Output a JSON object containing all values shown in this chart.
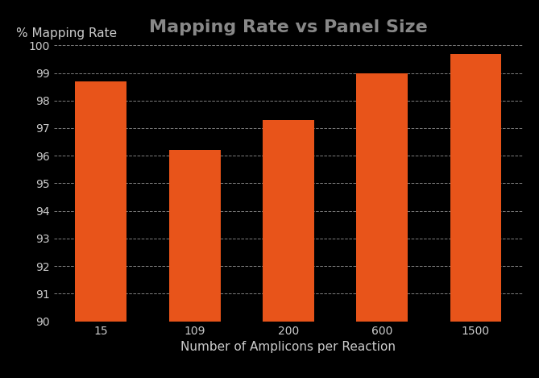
{
  "title": "Mapping Rate vs Panel Size",
  "xlabel": "Number of Amplicons per Reaction",
  "ylabel": "% Mapping Rate",
  "categories": [
    "15",
    "109",
    "200",
    "600",
    "1500"
  ],
  "values": [
    98.7,
    96.2,
    97.3,
    99.0,
    99.7
  ],
  "bar_color": "#E8541A",
  "ylim": [
    90,
    100
  ],
  "yticks": [
    90,
    91,
    92,
    93,
    94,
    95,
    96,
    97,
    98,
    99,
    100
  ],
  "background_color": "#000000",
  "plot_bg_color": "#000000",
  "text_color": "#cccccc",
  "title_color": "#888888",
  "grid_color": "#ffffff",
  "title_fontsize": 16,
  "axis_label_fontsize": 11,
  "tick_fontsize": 10
}
